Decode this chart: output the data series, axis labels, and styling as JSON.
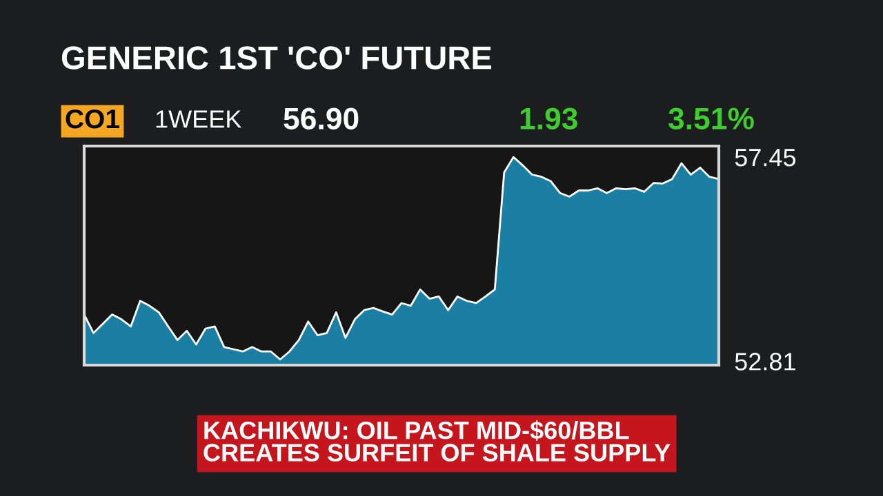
{
  "chart_data": {
    "type": "area",
    "title": "GENERIC 1ST 'CO' FUTURE",
    "annotations": [
      "CO1",
      "1WEEK",
      "56.90",
      "1.93",
      "3.51%",
      "KACHIKWU: OIL PAST MID-$60/BBL\nCREATES SURFEIT OF SHALE SUPPLY"
    ],
    "categories": [
      null,
      null,
      null,
      null,
      null,
      null,
      null,
      null,
      null,
      null,
      null,
      null,
      null,
      null,
      null,
      null,
      null,
      null,
      null,
      null,
      null,
      null,
      null,
      null,
      null,
      null,
      null,
      null,
      null,
      null,
      null,
      null,
      null,
      null,
      null,
      null,
      null,
      null,
      null,
      null,
      null,
      null,
      null,
      null,
      null,
      null,
      null,
      null,
      null,
      null,
      null,
      null,
      null,
      null,
      null,
      null,
      null,
      null,
      null,
      null,
      null,
      null,
      null,
      null,
      null,
      null,
      null,
      null,
      null
    ],
    "values": [
      53.87,
      53.45,
      53.66,
      53.87,
      53.76,
      53.6,
      54.18,
      54.07,
      53.92,
      53.6,
      53.29,
      53.5,
      53.19,
      53.55,
      53.6,
      53.13,
      53.08,
      53.03,
      53.13,
      53.03,
      53.03,
      52.85,
      53.03,
      53.29,
      53.71,
      53.4,
      53.45,
      53.92,
      53.34,
      53.76,
      53.97,
      54.02,
      53.94,
      53.87,
      54.13,
      54.07,
      54.44,
      54.23,
      54.28,
      53.97,
      54.28,
      54.18,
      54.13,
      54.28,
      54.44,
      57.1,
      57.45,
      57.26,
      57.05,
      57.0,
      56.9,
      56.63,
      56.55,
      56.69,
      56.69,
      56.74,
      56.63,
      56.74,
      56.72,
      56.74,
      56.66,
      56.86,
      56.85,
      56.95,
      57.31,
      57.05,
      57.21,
      57.0,
      56.95
    ],
    "color": "#1b7fa3",
    "ylim": [
      52.72,
      57.7
    ],
    "yticks": [
      52.81,
      57.45
    ],
    "tick_labels": "y"
  }
}
